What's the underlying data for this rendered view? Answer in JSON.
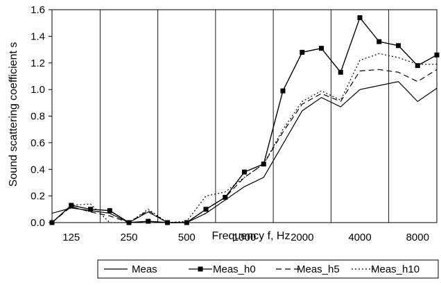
{
  "chart_data": {
    "type": "line",
    "title": "",
    "xlabel": "Frequency f, Hz",
    "ylabel": "Sound scattering coefficient s",
    "ylim": [
      0,
      1.6
    ],
    "y_ticks": [
      "0.0",
      "0.2",
      "0.4",
      "0.6",
      "0.8",
      "1.0",
      "1.2",
      "1.4",
      "1.6"
    ],
    "x_scale": "log (third-octave bands)",
    "x": [
      100,
      125,
      160,
      200,
      250,
      315,
      400,
      500,
      630,
      800,
      1000,
      1250,
      1600,
      2000,
      2500,
      3150,
      4000,
      5000,
      6300,
      8000,
      10000
    ],
    "x_ticks": [
      "125",
      "250",
      "500",
      "1000",
      "2000",
      "4000",
      "8000"
    ],
    "grid": "vertical lines at each octave boundary",
    "legend_position": "bottom-right",
    "series": [
      {
        "name": "Meas",
        "style": "solid",
        "marker": "none",
        "values": [
          0.07,
          0.11,
          0.09,
          0.07,
          0.0,
          0.08,
          0.0,
          0.0,
          0.07,
          0.17,
          0.27,
          0.34,
          0.59,
          0.84,
          0.94,
          0.87,
          1.0,
          1.03,
          1.06,
          0.91,
          1.01
        ]
      },
      {
        "name": "Meas_h0",
        "style": "solid",
        "marker": "square",
        "values": [
          0.0,
          0.13,
          0.1,
          0.09,
          0.0,
          0.01,
          0.0,
          0.0,
          0.1,
          0.19,
          0.38,
          0.44,
          0.99,
          1.28,
          1.31,
          1.13,
          1.54,
          1.36,
          1.33,
          1.18,
          1.26
        ]
      },
      {
        "name": "Meas_h5",
        "style": "dashed",
        "marker": "none",
        "values": [
          0.0,
          0.12,
          0.08,
          0.05,
          0.0,
          0.09,
          0.0,
          0.0,
          0.1,
          0.19,
          0.34,
          0.44,
          0.68,
          0.89,
          0.97,
          0.91,
          1.14,
          1.15,
          1.13,
          1.06,
          1.15
        ]
      },
      {
        "name": "Meas_h10",
        "style": "dotted",
        "marker": "none",
        "values": [
          0.0,
          0.13,
          0.14,
          0.0,
          0.0,
          0.1,
          0.0,
          0.01,
          0.2,
          0.23,
          0.34,
          0.44,
          0.7,
          0.91,
          0.99,
          0.92,
          1.22,
          1.27,
          1.24,
          1.19,
          1.19
        ]
      }
    ]
  }
}
